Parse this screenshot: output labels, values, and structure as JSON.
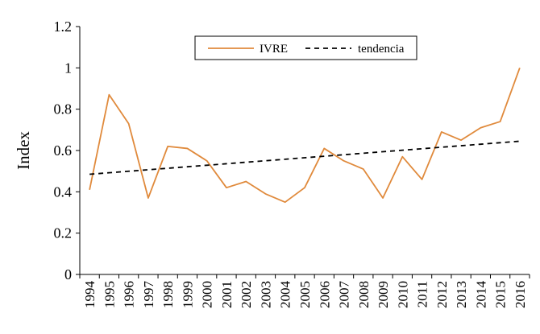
{
  "chart_data": {
    "type": "line",
    "ylabel": "Index",
    "xlabel": "",
    "ylim": [
      0,
      1.2
    ],
    "yticks": [
      "0",
      "0.2",
      "0.4",
      "0.6",
      "0.8",
      "1",
      "1.2"
    ],
    "x": [
      "1994",
      "1995",
      "1996",
      "1997",
      "1998",
      "1999",
      "2000",
      "2001",
      "2002",
      "2003",
      "2004",
      "2005",
      "2006",
      "2007",
      "2008",
      "2009",
      "2010",
      "2011",
      "2012",
      "2013",
      "2014",
      "2015",
      "2016"
    ],
    "series": [
      {
        "name": "IVRE",
        "color": "#e08a3c",
        "style": "solid",
        "values": [
          0.41,
          0.87,
          0.73,
          0.37,
          0.62,
          0.61,
          0.55,
          0.42,
          0.45,
          0.39,
          0.35,
          0.42,
          0.61,
          0.55,
          0.51,
          0.37,
          0.57,
          0.46,
          0.69,
          0.65,
          0.71,
          0.74,
          1.0
        ]
      },
      {
        "name": "tendencia",
        "color": "#000000",
        "style": "dashed",
        "values": [
          0.485,
          0.4923,
          0.4995,
          0.5068,
          0.5141,
          0.5214,
          0.5286,
          0.5359,
          0.5432,
          0.5505,
          0.5577,
          0.565,
          0.5723,
          0.5795,
          0.5868,
          0.5941,
          0.6014,
          0.6086,
          0.6159,
          0.6232,
          0.6305,
          0.6377,
          0.645
        ]
      }
    ],
    "legend_position": "top-center",
    "grid": false
  }
}
